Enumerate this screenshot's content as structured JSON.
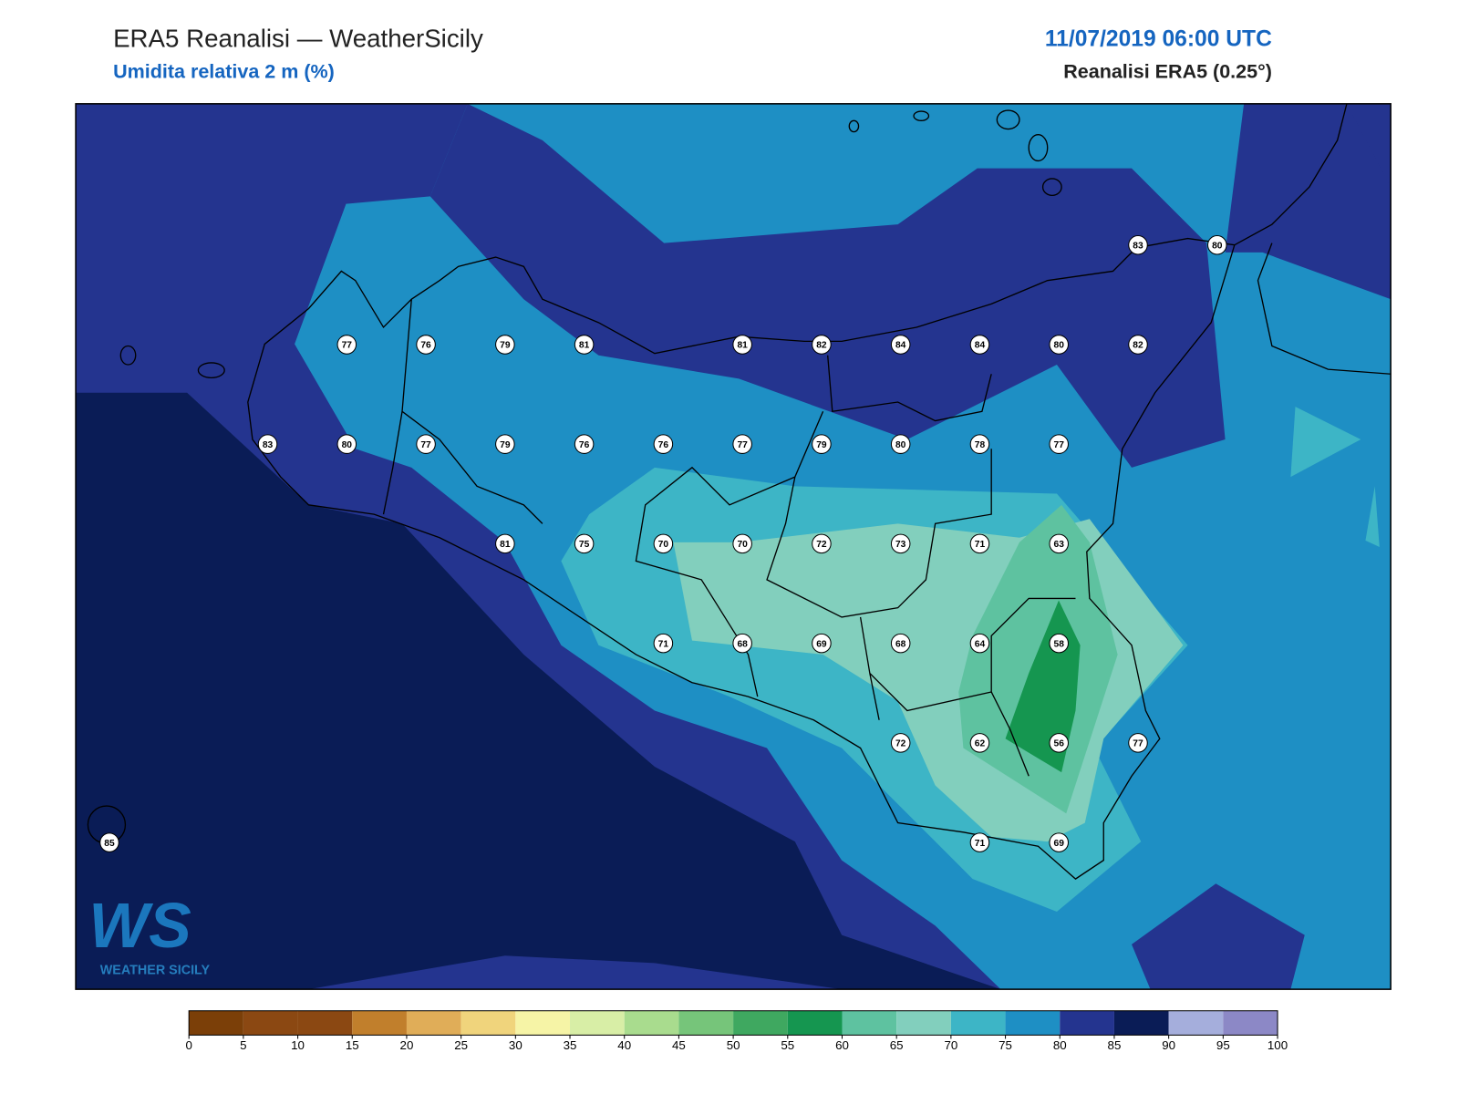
{
  "header": {
    "title": "ERA5 Reanalisi — WeatherSicily",
    "subtitle": "Umidita relativa 2 m (%)",
    "datetime": "11/07/2019 06:00 UTC",
    "source": "Reanalisi ERA5 (0.25°)"
  },
  "stations": [
    83,
    80,
    77,
    76,
    79,
    81,
    81,
    82,
    84,
    84,
    80,
    82,
    83,
    80,
    77,
    79,
    76,
    76,
    77,
    79,
    80,
    78,
    77,
    81,
    75,
    70,
    70,
    72,
    73,
    71,
    63,
    71,
    68,
    69,
    68,
    64,
    58,
    72,
    62,
    56,
    77,
    85,
    71,
    69
  ],
  "colorbar": {
    "ticks": [
      0,
      5,
      10,
      15,
      20,
      25,
      30,
      35,
      40,
      45,
      50,
      55,
      60,
      65,
      70,
      75,
      80,
      85,
      90,
      95,
      100
    ],
    "colors": [
      "#7b3f08",
      "#8b4812",
      "#8b4812",
      "#c17f2c",
      "#e0ad58",
      "#f0d47c",
      "#f6f4a6",
      "#d8eea6",
      "#a9dc8e",
      "#76c57a",
      "#3fa860",
      "#159650",
      "#5ec2a0",
      "#82cfbd",
      "#3db5c6",
      "#1e8fc4",
      "#24348f",
      "#0a1c56",
      "#a5aedc",
      "#8c88c6"
    ]
  },
  "logo": {
    "mark": "WS",
    "name": "WEATHER SICILY"
  }
}
